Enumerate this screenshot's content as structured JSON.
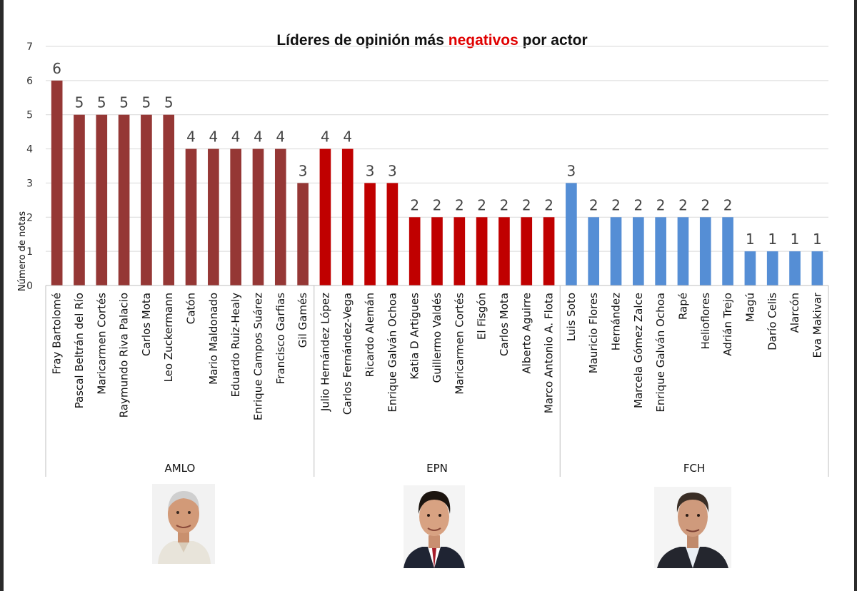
{
  "chart_data": {
    "type": "bar",
    "title_parts": [
      "Líderes de opinión más ",
      "negativos",
      " por actor"
    ],
    "ylabel": "Número de notas",
    "ylim": [
      0,
      7
    ],
    "yticks": [
      0,
      1,
      2,
      3,
      4,
      5,
      6,
      7
    ],
    "grid": true,
    "groups": [
      {
        "name": "AMLO",
        "color": "#953735",
        "categories": [
          "Fray Bartolomé",
          "Pascal Beltrán del Río",
          "Maricarmen Cortés",
          "Raymundo Riva Palacio",
          "Carlos Mota",
          "Leo Zuckermann",
          "Catón",
          "Mario Maldonado",
          "Eduardo Ruiz-Healy",
          "Enrique Campos Suárez",
          "Francisco Garfias",
          "Gil Gamés"
        ],
        "values": [
          6,
          5,
          5,
          5,
          5,
          5,
          4,
          4,
          4,
          4,
          4,
          3
        ]
      },
      {
        "name": "EPN",
        "color": "#c00000",
        "categories": [
          "Julio Hernández López",
          "Carlos Fernández-Vega",
          "Ricardo Alemán",
          "Enrique Galván Ochoa",
          "Katia D Artigues",
          "Guillermo Valdés",
          "Maricarmen Cortés",
          "El Fisgón",
          "Carlos Mota",
          "Alberto Aguirre",
          "Marco Antonio A. Flota"
        ],
        "values": [
          4,
          4,
          3,
          3,
          2,
          2,
          2,
          2,
          2,
          2,
          2
        ]
      },
      {
        "name": "FCH",
        "color": "#558ed5",
        "categories": [
          "Luis Soto",
          "Mauricio Flores",
          "Hernández",
          "Marcela Gómez Zalce",
          "Enrique Galván Ochoa",
          "Rapé",
          "Heliofl­ores",
          "Adrián Trejo",
          "Magú",
          "Darío Celis",
          "Alarcón",
          "Eva Makivar"
        ],
        "values": [
          3,
          2,
          2,
          2,
          2,
          2,
          2,
          2,
          1,
          1,
          1,
          1
        ]
      }
    ]
  }
}
